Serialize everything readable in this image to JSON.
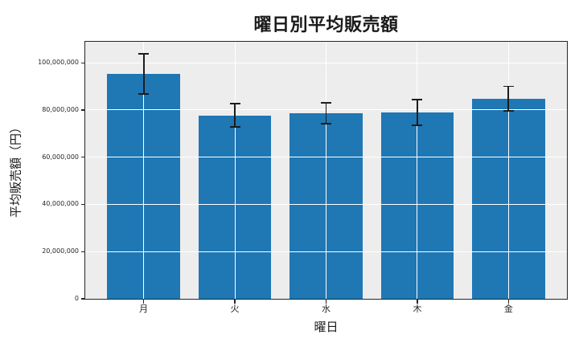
{
  "chart_data": {
    "type": "bar",
    "title": "曜日別平均販売額",
    "xlabel": "曜日",
    "ylabel": "平均販売額（円）",
    "categories": [
      "月",
      "火",
      "水",
      "木",
      "金"
    ],
    "values": [
      95200000,
      77700000,
      78700000,
      79000000,
      84800000
    ],
    "errors": [
      8500000,
      5000000,
      4400000,
      5400000,
      5200000
    ],
    "ylim": [
      0,
      108900000
    ],
    "yticks": [
      0,
      20000000,
      40000000,
      60000000,
      80000000,
      100000000
    ],
    "ytick_labels": [
      "0",
      "20,000,000",
      "40,000,000",
      "60,000,000",
      "80,000,000",
      "100,000,000"
    ],
    "grid": true,
    "grid_on_top_of_bars": true,
    "legend": false,
    "colors": {
      "bar": "#1f77b4",
      "plot_background": "#ededed",
      "figure_background": "#ffffff",
      "gridline": "#ffffff",
      "error_bar": "#1c1c1c",
      "spine": "#262626",
      "text": "#1a1a1a"
    }
  }
}
